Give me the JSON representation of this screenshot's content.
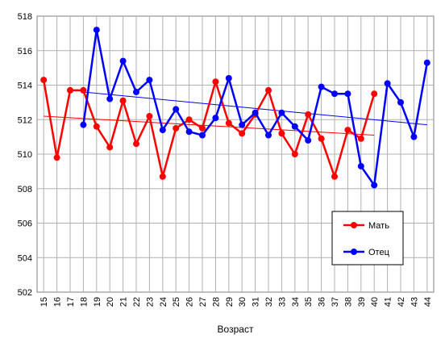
{
  "chart_data": {
    "type": "line",
    "title": "",
    "xlabel": "Возраст",
    "ylabel": "",
    "x": [
      15,
      16,
      17,
      18,
      19,
      20,
      21,
      22,
      23,
      24,
      25,
      26,
      27,
      28,
      29,
      30,
      31,
      32,
      33,
      34,
      35,
      36,
      37,
      38,
      39,
      40,
      41,
      42,
      43,
      44
    ],
    "ylim": [
      502,
      518
    ],
    "ytick_step": 2,
    "grid": true,
    "legend_position": "bottom-right",
    "series": [
      {
        "name": "Мать",
        "color": "#ff0000",
        "values": [
          514.3,
          509.8,
          513.7,
          513.7,
          511.6,
          510.4,
          513.1,
          510.6,
          512.2,
          508.7,
          511.5,
          512.0,
          511.5,
          514.2,
          511.8,
          511.2,
          512.3,
          513.7,
          511.2,
          510.0,
          512.3,
          510.9,
          508.7,
          511.4,
          510.9,
          513.5,
          null,
          null,
          null,
          null
        ],
        "trend": [
          512.2,
          511.1
        ]
      },
      {
        "name": "Отец",
        "color": "#0000ff",
        "values": [
          null,
          null,
          null,
          511.7,
          517.2,
          513.2,
          515.4,
          513.6,
          514.3,
          511.4,
          512.6,
          511.3,
          511.1,
          512.1,
          514.4,
          511.7,
          512.4,
          511.1,
          512.4,
          511.6,
          510.8,
          513.9,
          513.5,
          513.5,
          509.3,
          508.2,
          514.1,
          513.0,
          511.0,
          515.3
        ],
        "trend": [
          513.6,
          511.7
        ]
      }
    ]
  }
}
